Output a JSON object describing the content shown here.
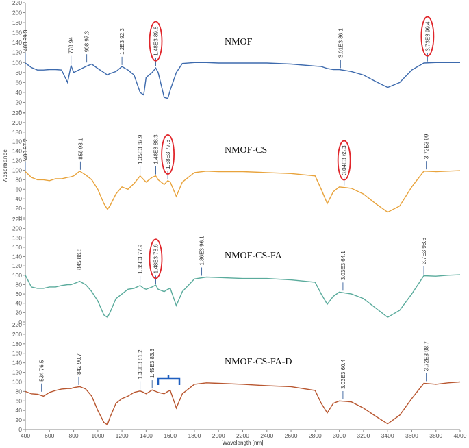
{
  "chart_data": [
    {
      "type": "line",
      "xlim": [
        400,
        4000
      ],
      "ylim": [
        0,
        220
      ],
      "yticks": [
        0,
        20,
        40,
        60,
        80,
        100,
        120,
        140,
        160,
        180,
        200,
        220
      ],
      "x": [
        400,
        450,
        500,
        550,
        600,
        650,
        700,
        750,
        778,
        800,
        850,
        900,
        950,
        1000,
        1050,
        1080,
        1100,
        1150,
        1200,
        1250,
        1300,
        1350,
        1380,
        1400,
        1450,
        1480,
        1500,
        1550,
        1580,
        1600,
        1650,
        1700,
        1800,
        1900,
        2000,
        2200,
        2400,
        2600,
        2800,
        2850,
        2900,
        2950,
        3000,
        3100,
        3200,
        3300,
        3400,
        3500,
        3600,
        3700,
        3800,
        3900,
        4000
      ],
      "series": [
        {
          "name": "NMOF",
          "color": "#3d6aad",
          "values": [
            99,
            90,
            85,
            85,
            86,
            86,
            85,
            60,
            94,
            80,
            86,
            92,
            97,
            88,
            80,
            75,
            78,
            82,
            92,
            85,
            75,
            40,
            35,
            70,
            80,
            89,
            80,
            30,
            28,
            45,
            80,
            98,
            100,
            100,
            99,
            99,
            99,
            97,
            93,
            92,
            88,
            86,
            86,
            82,
            75,
            62,
            50,
            60,
            85,
            99,
            100,
            100,
            100
          ]
        }
      ],
      "annotations": [
        {
          "text": "400 99.3",
          "x": 400,
          "y": 99.3,
          "highlight": false
        },
        {
          "text": "778 94",
          "x": 778,
          "y": 94,
          "highlight": false
        },
        {
          "text": "908 97.3",
          "x": 908,
          "y": 97.3,
          "highlight": false
        },
        {
          "text": "1.2E3 92.3",
          "x": 1200,
          "y": 92.3,
          "highlight": false
        },
        {
          "text": "1.48E3 89.8",
          "x": 1480,
          "y": 89.8,
          "highlight": true
        },
        {
          "text": "3.01E3 86.1",
          "x": 3010,
          "y": 86.1,
          "highlight": false
        },
        {
          "text": "3.73E3 99.4",
          "x": 3730,
          "y": 99.4,
          "highlight": true
        }
      ]
    },
    {
      "type": "line",
      "xlim": [
        400,
        4000
      ],
      "ylim": [
        0,
        220
      ],
      "yticks": [
        0,
        20,
        40,
        60,
        80,
        100,
        120,
        140,
        160,
        180,
        200,
        220
      ],
      "ylabel": "Absorbance",
      "x": [
        400,
        450,
        500,
        550,
        600,
        650,
        700,
        750,
        778,
        800,
        850,
        900,
        950,
        1000,
        1050,
        1080,
        1100,
        1150,
        1200,
        1250,
        1300,
        1350,
        1380,
        1400,
        1450,
        1480,
        1500,
        1550,
        1580,
        1600,
        1650,
        1700,
        1800,
        1900,
        2000,
        2200,
        2400,
        2600,
        2800,
        2850,
        2900,
        2950,
        3000,
        3100,
        3200,
        3300,
        3400,
        3500,
        3600,
        3700,
        3800,
        3900,
        4000
      ],
      "series": [
        {
          "name": "NMOF-CS",
          "color": "#e8a33c",
          "values": [
            97,
            85,
            80,
            80,
            78,
            82,
            82,
            85,
            86,
            88,
            98,
            90,
            80,
            60,
            30,
            18,
            25,
            50,
            65,
            60,
            72,
            88,
            80,
            75,
            85,
            88,
            80,
            70,
            78,
            75,
            45,
            75,
            95,
            98,
            97,
            97,
            95,
            93,
            88,
            60,
            30,
            55,
            65,
            62,
            50,
            30,
            12,
            25,
            65,
            98,
            97,
            98,
            99
          ]
        }
      ],
      "annotations": [
        {
          "text": "400 97.2",
          "x": 400,
          "y": 97.2,
          "highlight": false
        },
        {
          "text": "856 98.1",
          "x": 856,
          "y": 98.1,
          "highlight": false
        },
        {
          "text": "1.35E3 87.9",
          "x": 1350,
          "y": 87.9,
          "highlight": false
        },
        {
          "text": "1.48E3 88.3",
          "x": 1480,
          "y": 88.3,
          "highlight": false
        },
        {
          "text": "1.58E3 77.6",
          "x": 1580,
          "y": 77.6,
          "highlight": true
        },
        {
          "text": "3.04E3 65.3",
          "x": 3040,
          "y": 65.3,
          "highlight": true
        },
        {
          "text": "3.72E3 99",
          "x": 3720,
          "y": 99,
          "highlight": false
        }
      ]
    },
    {
      "type": "line",
      "xlim": [
        400,
        4000
      ],
      "ylim": [
        0,
        220
      ],
      "yticks": [
        0,
        20,
        40,
        60,
        80,
        100,
        120,
        140,
        160,
        180,
        200,
        220
      ],
      "x": [
        400,
        450,
        500,
        550,
        600,
        650,
        700,
        750,
        778,
        800,
        850,
        900,
        950,
        1000,
        1050,
        1080,
        1100,
        1150,
        1200,
        1250,
        1300,
        1350,
        1380,
        1400,
        1450,
        1480,
        1500,
        1550,
        1580,
        1600,
        1650,
        1700,
        1800,
        1900,
        2000,
        2200,
        2400,
        2600,
        2800,
        2850,
        2900,
        2950,
        3000,
        3100,
        3200,
        3300,
        3400,
        3500,
        3600,
        3700,
        3800,
        3900,
        4000
      ],
      "series": [
        {
          "name": "NMOF-CS-FA",
          "color": "#5aab9c",
          "values": [
            100,
            75,
            72,
            72,
            75,
            75,
            78,
            80,
            80,
            82,
            87,
            80,
            65,
            45,
            15,
            10,
            20,
            50,
            60,
            70,
            72,
            78,
            72,
            70,
            75,
            79,
            70,
            65,
            70,
            72,
            35,
            65,
            92,
            96,
            95,
            93,
            93,
            90,
            85,
            60,
            38,
            55,
            64,
            60,
            50,
            30,
            10,
            25,
            60,
            99,
            98,
            100,
            101
          ]
        }
      ],
      "annotations": [
        {
          "text": "845 86.8",
          "x": 845,
          "y": 86.8,
          "highlight": false
        },
        {
          "text": "1.35E3 77.9",
          "x": 1350,
          "y": 77.9,
          "highlight": false
        },
        {
          "text": "1.48E3 78.6",
          "x": 1480,
          "y": 78.6,
          "highlight": true
        },
        {
          "text": "1.86E3 96.1",
          "x": 1860,
          "y": 96.1,
          "highlight": false
        },
        {
          "text": "3.03E3 64.1",
          "x": 3030,
          "y": 64.1,
          "highlight": false
        },
        {
          "text": "3.7E3 98.6",
          "x": 3700,
          "y": 98.6,
          "highlight": false
        }
      ]
    },
    {
      "type": "line",
      "xlim": [
        400,
        4000
      ],
      "ylim": [
        0,
        220
      ],
      "yticks": [
        0,
        20,
        40,
        60,
        80,
        100,
        120,
        140,
        160,
        180,
        200,
        220
      ],
      "xlabel": "Wavelength [nm]",
      "xticks": [
        400,
        600,
        800,
        1000,
        1200,
        1400,
        1600,
        1800,
        2000,
        2200,
        2400,
        2600,
        2800,
        3000,
        3200,
        3400,
        3600,
        3800,
        4000
      ],
      "x": [
        400,
        450,
        500,
        550,
        600,
        650,
        700,
        750,
        778,
        800,
        850,
        900,
        950,
        1000,
        1050,
        1080,
        1100,
        1150,
        1200,
        1250,
        1300,
        1350,
        1380,
        1400,
        1450,
        1480,
        1500,
        1550,
        1580,
        1600,
        1650,
        1700,
        1800,
        1900,
        2000,
        2200,
        2400,
        2600,
        2800,
        2850,
        2900,
        2950,
        3000,
        3100,
        3200,
        3300,
        3400,
        3500,
        3600,
        3700,
        3800,
        3900,
        4000
      ],
      "series": [
        {
          "name": "NMOF-CS-FA-D",
          "color": "#b8562f",
          "values": [
            80,
            75,
            74,
            70,
            78,
            82,
            85,
            86,
            86,
            88,
            90,
            85,
            70,
            40,
            15,
            10,
            25,
            55,
            65,
            70,
            78,
            81,
            78,
            75,
            83,
            80,
            78,
            75,
            80,
            82,
            45,
            75,
            95,
            98,
            97,
            95,
            92,
            90,
            82,
            55,
            35,
            55,
            60,
            58,
            45,
            28,
            12,
            30,
            65,
            97,
            95,
            98,
            100
          ]
        }
      ],
      "annotations": [
        {
          "text": "534 76.5",
          "x": 534,
          "y": 76.5,
          "highlight": false
        },
        {
          "text": "842 90.7",
          "x": 842,
          "y": 90.7,
          "highlight": false
        },
        {
          "text": "1.35E3 81.2",
          "x": 1350,
          "y": 81.2,
          "highlight": false
        },
        {
          "text": "1.45E3 83.3",
          "x": 1450,
          "y": 83.3,
          "highlight": false
        },
        {
          "text": "3.03E3 60.4",
          "x": 3030,
          "y": 60.4,
          "highlight": false
        },
        {
          "text": "3.72E3 98.7",
          "x": 3720,
          "y": 98.7,
          "highlight": false
        }
      ]
    }
  ]
}
